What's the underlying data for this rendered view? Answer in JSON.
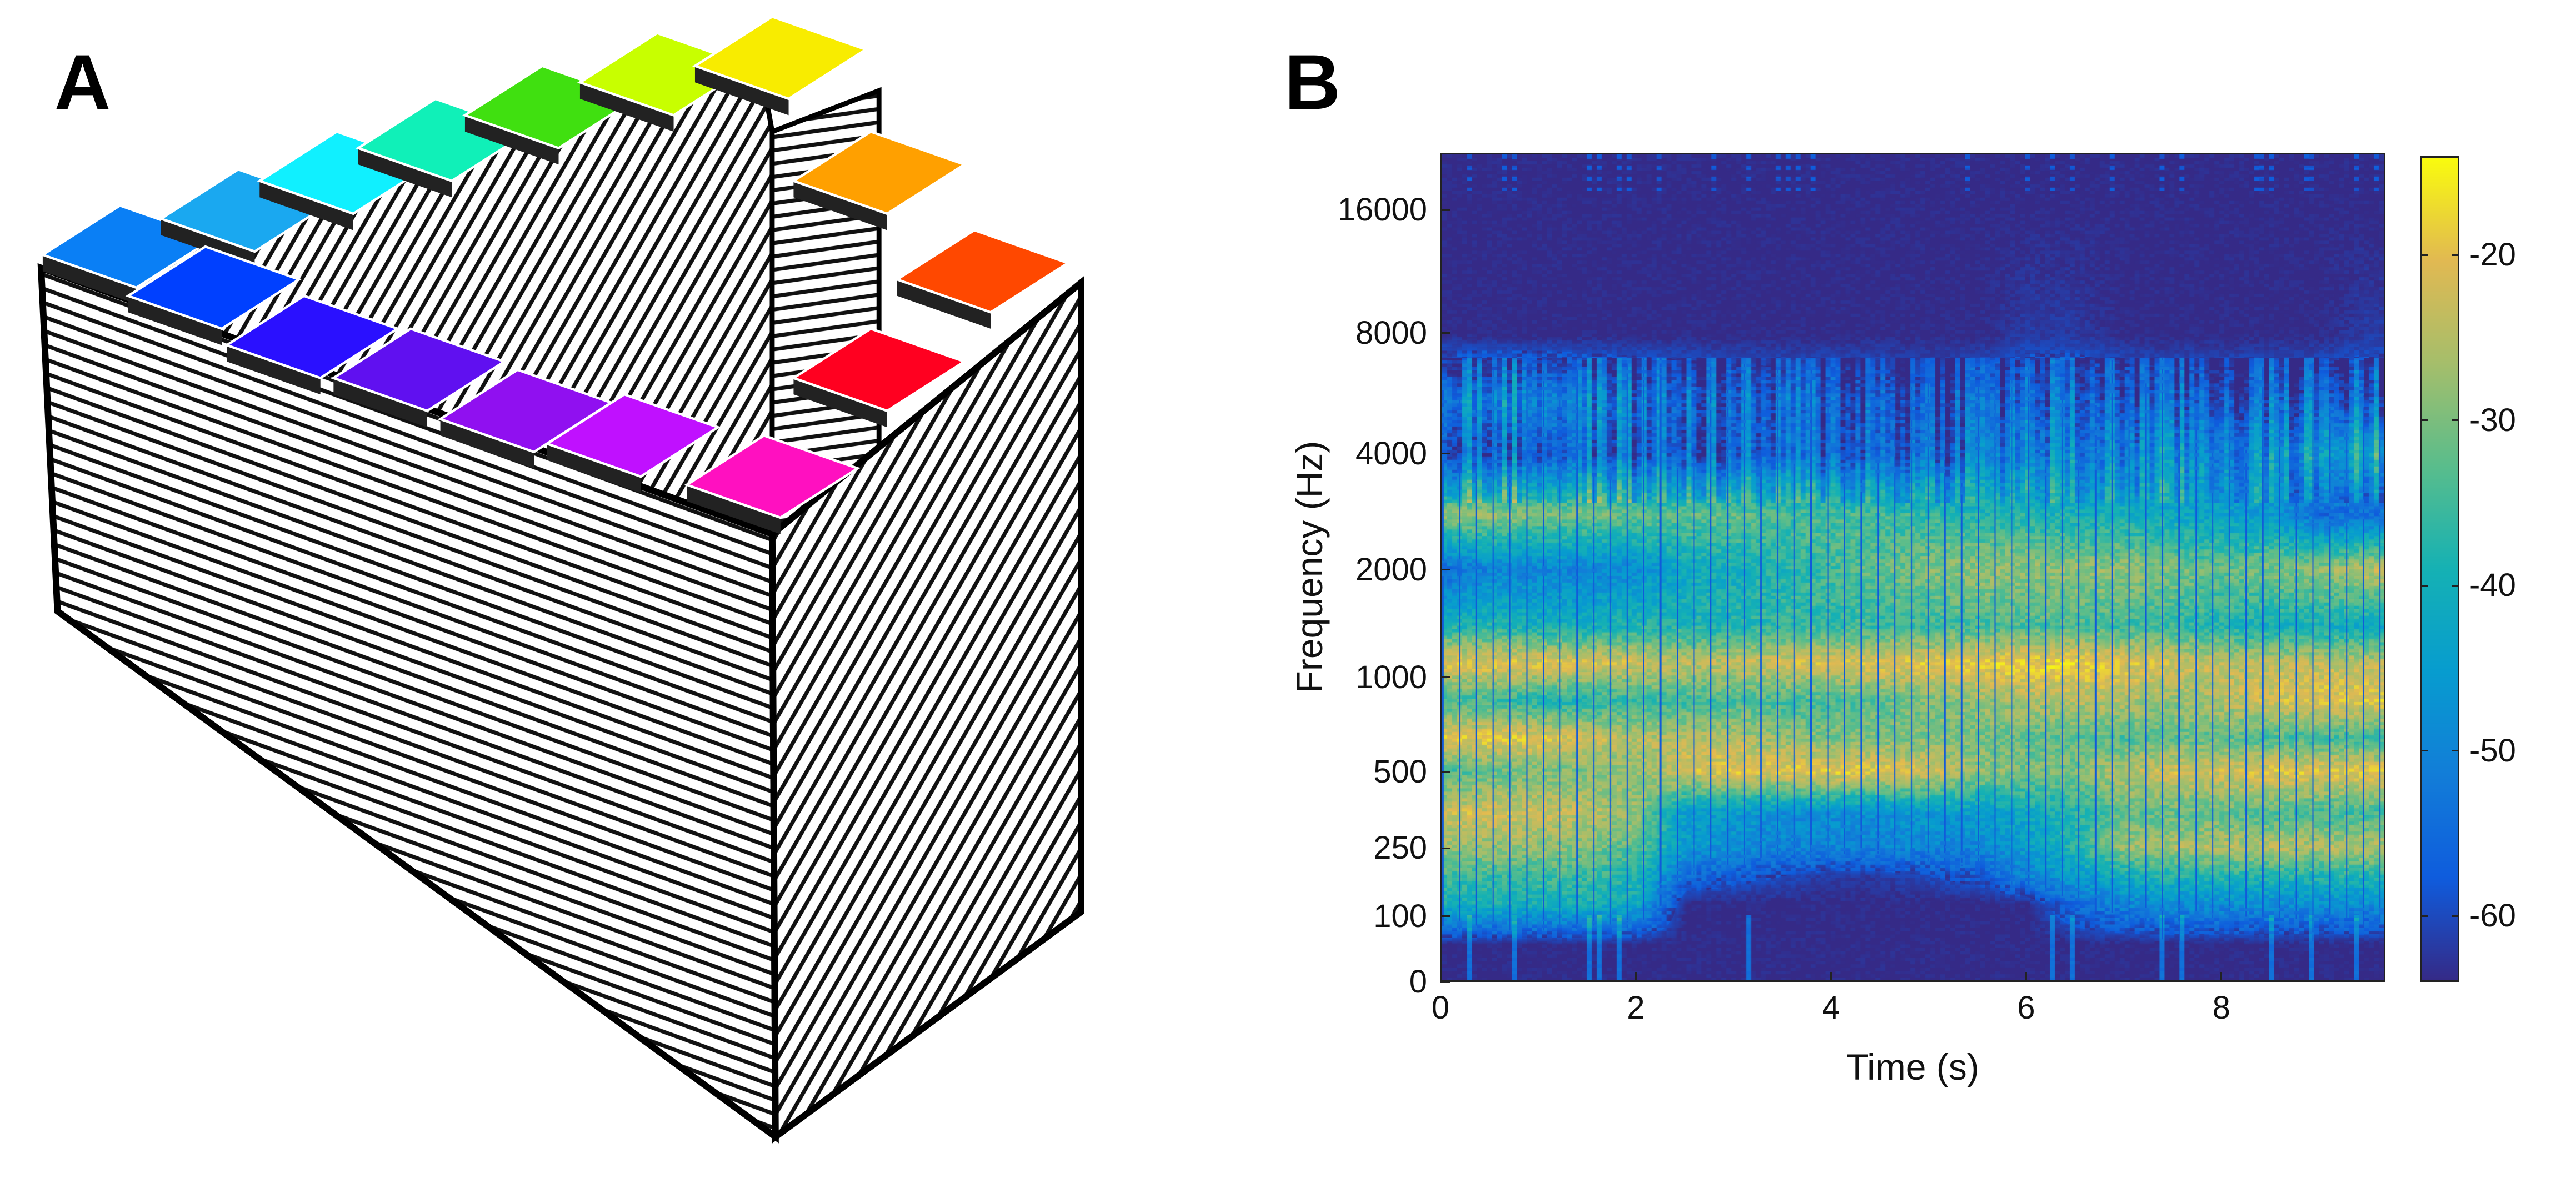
{
  "panel_labels": {
    "a": "A",
    "b": "B"
  },
  "panel_a": {
    "tile_colors": [
      "#0a7ff5",
      "#1aa8f0",
      "#10f0ff",
      "#10f0b8",
      "#40e010",
      "#c8ff00",
      "#f8ec00",
      "#ffa000",
      "#ff4800",
      "#ff0020",
      "#ff10c0",
      "#c010ff",
      "#9010f0",
      "#6010f0",
      "#2a10ff",
      "#0040ff"
    ]
  },
  "chart_data": {
    "type": "heatmap",
    "title": "",
    "xlabel": "Time (s)",
    "ylabel": "Frequency (Hz)",
    "xlim": [
      0,
      9.68
    ],
    "ylim": [
      0,
      22050
    ],
    "yscale": "erb",
    "xticks": [
      0,
      2,
      4,
      6,
      8
    ],
    "xtick_labels": [
      "0",
      "2",
      "4",
      "6",
      "8"
    ],
    "yticks": [
      0,
      100,
      250,
      500,
      1000,
      2000,
      4000,
      8000,
      16000
    ],
    "ytick_labels": [
      "0",
      "100",
      "250",
      "500",
      "1000",
      "2000",
      "4000",
      "8000",
      "16000"
    ],
    "colorbar": {
      "range": [
        -64,
        -14
      ],
      "ticks": [
        -20,
        -30,
        -40,
        -50,
        -60
      ],
      "tick_labels": [
        "-20",
        "-30",
        "-40",
        "-50",
        "-60"
      ],
      "colormap": "parula"
    },
    "time_bins": [
      0,
      0.5,
      1,
      1.5,
      2,
      2.5,
      3,
      3.5,
      4,
      4.5,
      5,
      5.5,
      6,
      6.5,
      7,
      7.5,
      8,
      8.5,
      9,
      9.5
    ],
    "freq_bins": [
      0,
      50,
      120,
      180,
      250,
      350,
      500,
      650,
      850,
      1100,
      1400,
      2000,
      2800,
      4000,
      5500,
      8000,
      16000,
      22050
    ],
    "values_db": [
      [
        -64,
        -64,
        -64,
        -64,
        -64,
        -64,
        -64,
        -64,
        -64,
        -64,
        -64,
        -64,
        -64,
        -64,
        -64,
        -64,
        -64,
        -64,
        -64,
        -64
      ],
      [
        -64,
        -64,
        -64,
        -64,
        -64,
        -64,
        -64,
        -64,
        -64,
        -64,
        -64,
        -64,
        -64,
        -64,
        -64,
        -64,
        -64,
        -64,
        -64,
        -64
      ],
      [
        -40,
        -40,
        -40,
        -40,
        -42,
        -64,
        -64,
        -64,
        -64,
        -64,
        -64,
        -64,
        -64,
        -55,
        -50,
        -48,
        -48,
        -48,
        -48,
        -48
      ],
      [
        -35,
        -35,
        -35,
        -35,
        -38,
        -55,
        -58,
        -60,
        -62,
        -62,
        -60,
        -58,
        -50,
        -45,
        -40,
        -38,
        -38,
        -38,
        -38,
        -38
      ],
      [
        -28,
        -28,
        -28,
        -30,
        -33,
        -45,
        -48,
        -50,
        -50,
        -50,
        -50,
        -50,
        -45,
        -38,
        -28,
        -26,
        -25,
        -25,
        -25,
        -25
      ],
      [
        -22,
        -22,
        -23,
        -24,
        -28,
        -45,
        -45,
        -48,
        -48,
        -48,
        -45,
        -45,
        -42,
        -38,
        -32,
        -32,
        -32,
        -34,
        -35,
        -35
      ],
      [
        -35,
        -32,
        -30,
        -30,
        -28,
        -22,
        -20,
        -20,
        -19,
        -20,
        -22,
        -28,
        -30,
        -30,
        -25,
        -22,
        -22,
        -20,
        -20,
        -20
      ],
      [
        -20,
        -19,
        -20,
        -22,
        -25,
        -25,
        -25,
        -28,
        -30,
        -30,
        -30,
        -30,
        -32,
        -32,
        -34,
        -32,
        -32,
        -34,
        -35,
        -35
      ],
      [
        -35,
        -35,
        -38,
        -38,
        -36,
        -35,
        -34,
        -35,
        -34,
        -32,
        -30,
        -28,
        -26,
        -25,
        -25,
        -28,
        -25,
        -22,
        -20,
        -20
      ],
      [
        -20,
        -20,
        -20,
        -21,
        -22,
        -24,
        -24,
        -22,
        -21,
        -20,
        -20,
        -19,
        -18,
        -18,
        -20,
        -22,
        -24,
        -24,
        -24,
        -24
      ],
      [
        -38,
        -38,
        -40,
        -40,
        -38,
        -38,
        -38,
        -36,
        -36,
        -36,
        -35,
        -35,
        -34,
        -34,
        -35,
        -36,
        -38,
        -40,
        -40,
        -42
      ],
      [
        -55,
        -50,
        -50,
        -50,
        -48,
        -42,
        -40,
        -38,
        -35,
        -32,
        -30,
        -28,
        -28,
        -28,
        -28,
        -30,
        -32,
        -30,
        -28,
        -24
      ],
      [
        -28,
        -28,
        -30,
        -30,
        -32,
        -32,
        -32,
        -34,
        -34,
        -35,
        -36,
        -38,
        -38,
        -40,
        -40,
        -42,
        -44,
        -45,
        -55,
        -55
      ],
      [
        -55,
        -55,
        -55,
        -55,
        -55,
        -56,
        -56,
        -56,
        -55,
        -55,
        -55,
        -52,
        -50,
        -50,
        -50,
        -48,
        -48,
        -48,
        -45,
        -40
      ],
      [
        -48,
        -48,
        -48,
        -50,
        -52,
        -54,
        -55,
        -56,
        -56,
        -56,
        -58,
        -56,
        -55,
        -55,
        -55,
        -56,
        -56,
        -56,
        -55,
        -55
      ],
      [
        -64,
        -64,
        -64,
        -64,
        -64,
        -64,
        -64,
        -64,
        -64,
        -64,
        -64,
        -64,
        -62,
        -62,
        -64,
        -64,
        -64,
        -64,
        -64,
        -62
      ],
      [
        -64,
        -64,
        -64,
        -64,
        -64,
        -64,
        -64,
        -64,
        -64,
        -64,
        -64,
        -64,
        -64,
        -64,
        -64,
        -64,
        -64,
        -64,
        -64,
        -64
      ],
      [
        -64,
        -64,
        -64,
        -64,
        -64,
        -64,
        -64,
        -64,
        -64,
        -64,
        -64,
        -64,
        -64,
        -64,
        -64,
        -64,
        -64,
        -64,
        -64,
        -64
      ]
    ]
  }
}
